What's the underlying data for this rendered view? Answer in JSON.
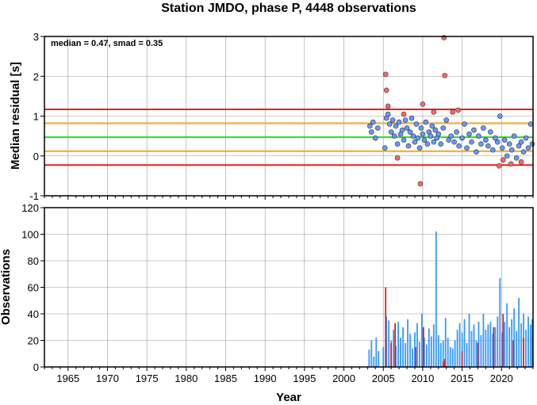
{
  "chart_data": [
    {
      "type": "scatter",
      "title": "Station JMDO, phase P, 4448 observations",
      "xlabel": "",
      "ylabel": "Median residual [s]",
      "annotation": "median = 0.47, smad = 0.35",
      "xlim": [
        1962,
        2024
      ],
      "ylim": [
        -1,
        3
      ],
      "xticks": [
        1965,
        1970,
        1975,
        1980,
        1985,
        1990,
        1995,
        2000,
        2005,
        2010,
        2015,
        2020
      ],
      "yticks": [
        -1,
        0,
        1,
        2,
        3
      ],
      "grid": true,
      "hlines": [
        {
          "y": 1.17,
          "color": "#e8201c"
        },
        {
          "y": 0.82,
          "color": "#f5a623"
        },
        {
          "y": 0.47,
          "color": "#22dd22"
        },
        {
          "y": 0.12,
          "color": "#f5a623"
        },
        {
          "y": -0.23,
          "color": "#e8201c"
        }
      ],
      "colors": {
        "inlier": "#6699ff",
        "outlier": "#ff6666",
        "edge": "#333333"
      },
      "series": [
        {
          "kind": "inlier",
          "x": [
            2003.3,
            2003.5,
            2003.7,
            2004.0,
            2004.3,
            2005.2,
            2005.4,
            2005.6,
            2005.8,
            2006.0,
            2006.2,
            2006.4,
            2006.6,
            2006.8,
            2007.0,
            2007.2,
            2007.4,
            2007.6,
            2007.8,
            2008.0,
            2008.2,
            2008.4,
            2008.6,
            2008.8,
            2009.0,
            2009.2,
            2009.4,
            2009.6,
            2009.8,
            2010.0,
            2010.2,
            2010.4,
            2010.6,
            2010.8,
            2011.0,
            2011.2,
            2011.4,
            2011.6,
            2011.8,
            2012.0,
            2012.3,
            2012.6,
            2013.0,
            2013.3,
            2013.6,
            2014.0,
            2014.3,
            2014.6,
            2015.0,
            2015.3,
            2015.6,
            2015.9,
            2016.2,
            2016.5,
            2016.8,
            2017.1,
            2017.4,
            2017.7,
            2018.0,
            2018.3,
            2018.6,
            2018.9,
            2019.2,
            2019.5,
            2019.8,
            2020.1,
            2020.4,
            2020.7,
            2021.0,
            2021.3,
            2021.6,
            2021.9,
            2022.2,
            2022.5,
            2022.8,
            2023.1,
            2023.4,
            2023.7,
            2023.9
          ],
          "y": [
            0.75,
            0.6,
            0.85,
            0.45,
            0.7,
            0.2,
            0.95,
            1.05,
            0.8,
            0.6,
            0.9,
            0.5,
            0.75,
            0.3,
            0.85,
            0.55,
            0.65,
            0.4,
            0.9,
            0.7,
            0.25,
            0.6,
            0.95,
            0.5,
            0.35,
            0.8,
            0.45,
            0.2,
            0.7,
            0.55,
            0.4,
            0.85,
            0.3,
            0.6,
            0.5,
            0.75,
            0.35,
            0.65,
            0.45,
            0.55,
            0.3,
            0.7,
            0.9,
            0.4,
            0.5,
            0.35,
            0.6,
            0.25,
            0.45,
            0.8,
            0.2,
            0.55,
            0.35,
            0.65,
            0.1,
            0.5,
            0.3,
            0.7,
            0.4,
            0.25,
            0.6,
            0.15,
            0.45,
            0.35,
            1.0,
            0.2,
            0.4,
            0.0,
            0.3,
            0.15,
            0.5,
            -0.05,
            0.25,
            0.35,
            0.1,
            0.45,
            0.2,
            0.8,
            0.3
          ]
        },
        {
          "kind": "outlier",
          "x": [
            2005.3,
            2005.4,
            2005.6,
            2006.8,
            2007.6,
            2010.0,
            2011.4,
            2012.7,
            2012.8,
            2013.8,
            2014.5,
            2019.7,
            2020.2,
            2021.2,
            2022.5,
            2009.7
          ],
          "y": [
            2.05,
            1.65,
            1.25,
            -0.05,
            1.05,
            1.3,
            1.1,
            2.97,
            2.02,
            1.1,
            1.15,
            -0.25,
            -0.1,
            -0.2,
            -0.15,
            -0.7
          ]
        }
      ]
    },
    {
      "type": "bar",
      "xlabel": "Year",
      "ylabel": "Observations",
      "xlim": [
        1962,
        2024
      ],
      "ylim": [
        0,
        120
      ],
      "xticks": [
        1965,
        1970,
        1975,
        1980,
        1985,
        1990,
        1995,
        2000,
        2005,
        2010,
        2015,
        2020
      ],
      "yticks": [
        0,
        20,
        40,
        60,
        80,
        100,
        120
      ],
      "grid": true,
      "colors": {
        "inlier": "#3399ff",
        "outlier": "#dd2222"
      },
      "series": [
        {
          "name": "",
          "kind": "inlier",
          "x": [
            2003.2,
            2003.5,
            2003.8,
            2004.1,
            2004.4,
            2005.0,
            2005.4,
            2005.7,
            2006.0,
            2006.3,
            2006.6,
            2006.9,
            2007.2,
            2007.5,
            2007.8,
            2008.1,
            2008.4,
            2008.7,
            2009.0,
            2009.3,
            2009.6,
            2009.9,
            2010.2,
            2010.5,
            2010.8,
            2011.1,
            2011.4,
            2011.7,
            2012.0,
            2012.3,
            2012.6,
            2012.9,
            2013.2,
            2013.5,
            2013.8,
            2014.1,
            2014.4,
            2014.7,
            2015.0,
            2015.3,
            2015.6,
            2015.9,
            2016.2,
            2016.5,
            2016.8,
            2017.1,
            2017.4,
            2017.7,
            2018.0,
            2018.3,
            2018.6,
            2018.9,
            2019.2,
            2019.5,
            2019.8,
            2020.1,
            2020.4,
            2020.7,
            2021.0,
            2021.3,
            2021.6,
            2021.9,
            2022.2,
            2022.5,
            2022.8,
            2023.1,
            2023.4,
            2023.7,
            2023.9
          ],
          "values": [
            13,
            20,
            8,
            22,
            12,
            15,
            38,
            35,
            20,
            28,
            16,
            34,
            22,
            30,
            18,
            36,
            25,
            14,
            26,
            33,
            19,
            40,
            22,
            17,
            29,
            23,
            32,
            102,
            24,
            18,
            20,
            37,
            22,
            15,
            14,
            20,
            28,
            33,
            26,
            36,
            18,
            40,
            27,
            32,
            20,
            34,
            24,
            40,
            28,
            32,
            34,
            25,
            30,
            38,
            67,
            26,
            34,
            48,
            30,
            36,
            44,
            27,
            52,
            33,
            40,
            28,
            38,
            32,
            36
          ]
        },
        {
          "name": "",
          "kind": "outlier",
          "x": [
            2005.3,
            2006.0,
            2006.5,
            2009.1,
            2010.1,
            2012.6,
            2012.8,
            2015.0,
            2017.0,
            2019.0,
            2020.2,
            2021.5,
            2022.8
          ],
          "values": [
            60,
            18,
            33,
            15,
            30,
            4,
            6,
            12,
            18,
            30,
            40,
            20,
            22
          ]
        }
      ]
    }
  ]
}
